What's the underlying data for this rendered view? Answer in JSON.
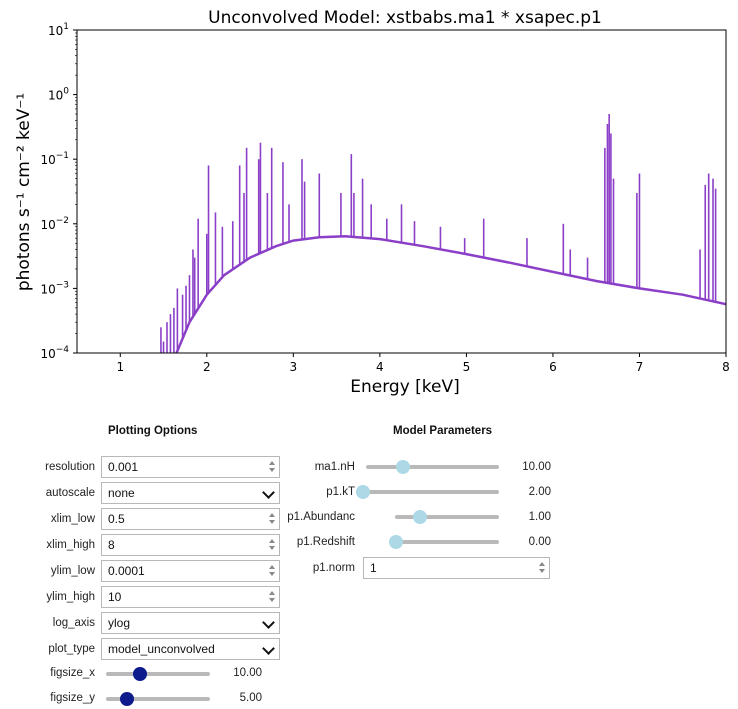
{
  "chart_data": {
    "type": "line",
    "title": "Unconvolved Model: xstbabs.ma1 * xsapec.p1",
    "xlabel": "Energy [keV]",
    "ylabel": "photons s⁻¹ cm⁻² keV⁻¹",
    "xlim": [
      0.5,
      8
    ],
    "ylim": [
      0.0001,
      10
    ],
    "yscale": "log",
    "x_ticks": [
      "1",
      "2",
      "3",
      "4",
      "5",
      "6",
      "7",
      "8"
    ],
    "y_ticks": [
      {
        "base": "10",
        "exp": "1"
      },
      {
        "base": "10",
        "exp": "0"
      },
      {
        "base": "10",
        "exp": "−1"
      },
      {
        "base": "10",
        "exp": "−2"
      },
      {
        "base": "10",
        "exp": "−3"
      },
      {
        "base": "10",
        "exp": "−4"
      }
    ],
    "line_color": "#8b3fc8",
    "continuum": {
      "x": [
        1.65,
        1.8,
        2.0,
        2.2,
        2.5,
        2.8,
        3.0,
        3.3,
        3.6,
        4.0,
        4.5,
        5.0,
        5.5,
        6.0,
        6.5,
        7.0,
        7.5,
        8.0
      ],
      "y": [
        0.0001,
        0.0003,
        0.0008,
        0.0016,
        0.003,
        0.0045,
        0.0055,
        0.0062,
        0.0064,
        0.0058,
        0.0045,
        0.0034,
        0.0025,
        0.0018,
        0.0013,
        0.001,
        0.0008,
        0.00057
      ]
    },
    "lines": {
      "x": [
        1.47,
        1.5,
        1.54,
        1.58,
        1.62,
        1.66,
        1.72,
        1.76,
        1.8,
        1.84,
        1.86,
        1.9,
        2.0,
        2.02,
        2.1,
        2.18,
        2.3,
        2.38,
        2.43,
        2.46,
        2.6,
        2.62,
        2.7,
        2.75,
        2.88,
        2.95,
        3.1,
        3.13,
        3.3,
        3.55,
        3.67,
        3.7,
        3.8,
        3.9,
        4.08,
        4.25,
        4.4,
        4.7,
        4.98,
        5.2,
        5.7,
        6.12,
        6.2,
        6.4,
        6.6,
        6.63,
        6.65,
        6.67,
        6.7,
        6.97,
        7.0,
        7.7,
        7.76,
        7.8,
        7.85,
        7.88
      ],
      "y": [
        0.00025,
        0.00015,
        0.0003,
        0.0004,
        0.0005,
        0.001,
        0.0008,
        0.0011,
        0.0016,
        0.004,
        0.003,
        0.012,
        0.007,
        0.08,
        0.015,
        0.009,
        0.011,
        0.08,
        0.03,
        0.15,
        0.1,
        0.18,
        0.03,
        0.15,
        0.09,
        0.02,
        0.1,
        0.045,
        0.06,
        0.03,
        0.12,
        0.03,
        0.05,
        0.02,
        0.012,
        0.02,
        0.011,
        0.009,
        0.006,
        0.012,
        0.006,
        0.01,
        0.004,
        0.003,
        0.15,
        0.35,
        0.5,
        0.25,
        0.05,
        0.03,
        0.06,
        0.004,
        0.04,
        0.06,
        0.05,
        0.035
      ]
    }
  },
  "plotting_options": {
    "title": "Plotting Options",
    "resolution": {
      "label": "resolution",
      "value": "0.001"
    },
    "autoscale": {
      "label": "autoscale",
      "value": "none"
    },
    "xlim_low": {
      "label": "xlim_low",
      "value": "0.5"
    },
    "xlim_high": {
      "label": "xlim_high",
      "value": "8"
    },
    "ylim_low": {
      "label": "ylim_low",
      "value": "0.0001"
    },
    "ylim_high": {
      "label": "ylim_high",
      "value": "10"
    },
    "log_axis": {
      "label": "log_axis",
      "value": "ylog"
    },
    "plot_type": {
      "label": "plot_type",
      "value": "model_unconvolved"
    },
    "figsize_x": {
      "label": "figsize_x",
      "value": "10.00",
      "level": 0.3
    },
    "figsize_y": {
      "label": "figsize_y",
      "value": "5.00",
      "level": 0.15
    }
  },
  "model_parameters": {
    "title": "Model Parameters",
    "nH": {
      "label": "ma1.nH",
      "value": "10.00",
      "level": 0.25
    },
    "kT": {
      "label": "p1.kT",
      "value": "2.00",
      "level": 0.0
    },
    "abundanc": {
      "label": "p1.Abundanc",
      "value": "1.00",
      "level": 0.2
    },
    "redshift": {
      "label": "p1.Redshift",
      "value": "0.00",
      "level": 0.0
    },
    "norm": {
      "label": "p1.norm",
      "value": "1"
    }
  }
}
